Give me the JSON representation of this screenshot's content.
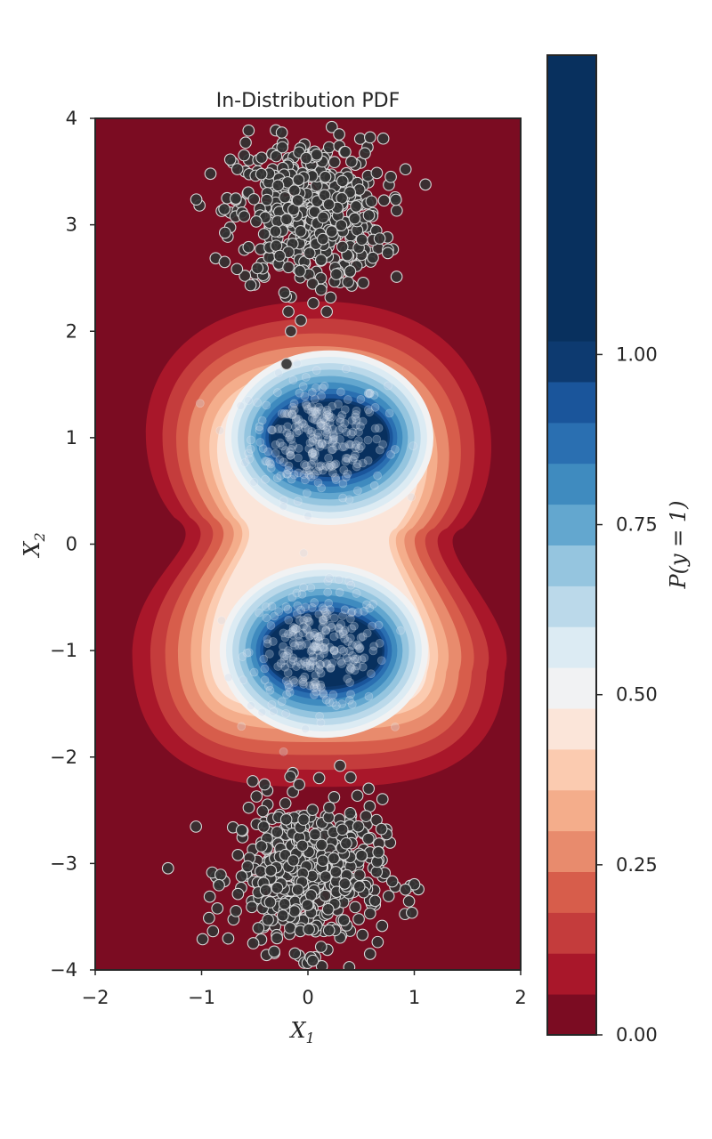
{
  "chart_data": {
    "type": "contour",
    "title": "In-Distribution PDF",
    "xlabel": "X",
    "xlabel_sub": "1",
    "ylabel": "X",
    "ylabel_sub": "2",
    "xlim": [
      -2,
      2
    ],
    "ylim": [
      -4,
      4
    ],
    "xticks": [
      -2,
      -1,
      0,
      1,
      2
    ],
    "xtick_labels": [
      "−2",
      "−1",
      "0",
      "1",
      "2"
    ],
    "yticks": [
      -4,
      -3,
      -2,
      -1,
      0,
      1,
      2,
      3,
      4
    ],
    "ytick_labels": [
      "−4",
      "−3",
      "−2",
      "−1",
      "0",
      "1",
      "2",
      "3",
      "4"
    ],
    "grid": false,
    "in_distribution_clusters": [
      {
        "name": "upper",
        "center": [
          0.1,
          1.0
        ],
        "label": 1
      },
      {
        "name": "lower",
        "center": [
          0.1,
          -1.0
        ],
        "label": 1
      }
    ],
    "out_of_distribution_clusters": [
      {
        "name": "top",
        "center": [
          0.0,
          3.1
        ],
        "spread": 0.35
      },
      {
        "name": "bottom",
        "center": [
          0.0,
          -3.1
        ],
        "spread": 0.35
      }
    ],
    "colorbar": {
      "label": "P(y = 1)",
      "ticks": [
        0.0,
        0.25,
        0.5,
        0.75,
        1.0
      ],
      "tick_labels": [
        "0.00",
        "0.25",
        "0.50",
        "0.75",
        "1.00"
      ],
      "range": [
        0.0,
        1.44
      ],
      "levels": [
        0.0,
        0.06,
        0.12,
        0.18,
        0.24,
        0.3,
        0.36,
        0.42,
        0.48,
        0.54,
        0.6,
        0.66,
        0.72,
        0.78,
        0.84,
        0.9,
        0.96,
        1.02,
        1.44
      ],
      "colors": [
        "#7b0c22",
        "#a9172a",
        "#c43c3c",
        "#d75d4b",
        "#e88b6d",
        "#f4ad8b",
        "#fbcbb0",
        "#fbe5d9",
        "#f1f2f3",
        "#dcebf3",
        "#bbd9ea",
        "#95c5df",
        "#63a7cf",
        "#3f8bbf",
        "#2a6fb1",
        "#1a559b",
        "#0d3a70",
        "#08305e"
      ]
    },
    "point_style": {
      "fill": "#333333",
      "stroke": "#d9d9d9"
    }
  }
}
